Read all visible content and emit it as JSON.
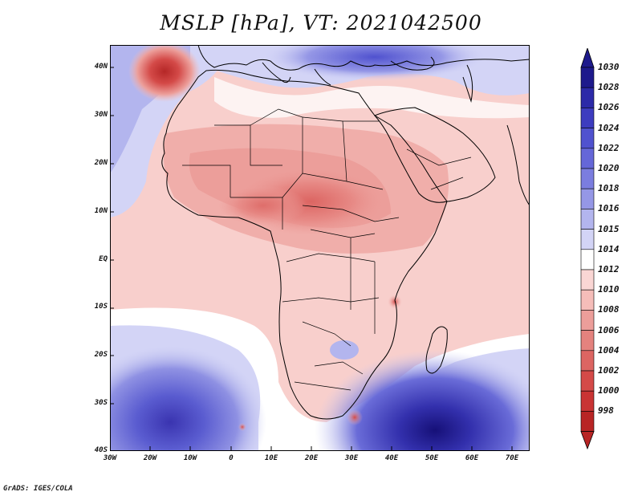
{
  "title": "MSLP [hPa], VT: 2021042500",
  "credit": "GrADS: IGES/COLA",
  "lat_ticks": [
    "40N",
    "30N",
    "20N",
    "10N",
    "EQ",
    "10S",
    "20S",
    "30S",
    "40S"
  ],
  "lon_ticks": [
    "30W",
    "20W",
    "10W",
    "0",
    "10E",
    "20E",
    "30E",
    "40E",
    "50E",
    "60E",
    "70E"
  ],
  "colorbar": {
    "levels": [
      "1030",
      "1028",
      "1026",
      "1024",
      "1022",
      "1020",
      "1018",
      "1016",
      "1015",
      "1014",
      "1012",
      "1010",
      "1008",
      "1006",
      "1004",
      "1002",
      "1000",
      "998"
    ],
    "colors": [
      "#1e1a8c",
      "#2c2aa8",
      "#3d3cbf",
      "#5052cf",
      "#6567d8",
      "#7b7ddf",
      "#9597e6",
      "#b3b5ee",
      "#d3d4f6",
      "#ffffff",
      "#fad6d4",
      "#f5bdb9",
      "#ec9e9a",
      "#e4827e",
      "#dc6562",
      "#d44a48",
      "#c93434",
      "#b82525"
    ]
  }
}
